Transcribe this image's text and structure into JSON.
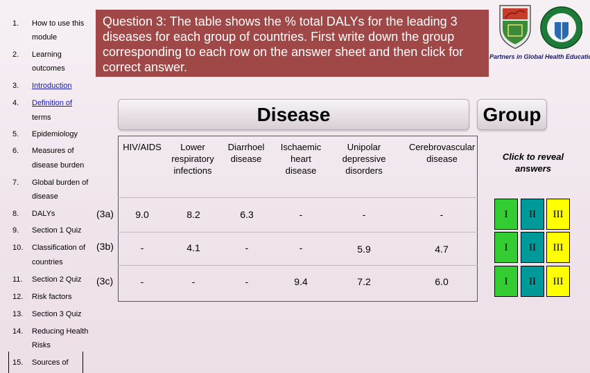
{
  "sidebar": {
    "items": [
      {
        "num": "1.",
        "line1": "How to use this",
        "line2": "module",
        "link": false
      },
      {
        "num": "2.",
        "line1": "Learning",
        "line2": "outcomes",
        "link": false
      },
      {
        "num": "3.",
        "line1": "Introduction",
        "line2": "",
        "link": true
      },
      {
        "num": "4.",
        "line1": "Definition of",
        "line2": "terms",
        "link": true
      },
      {
        "num": "5.",
        "line1": "Epidemiology",
        "line2": "",
        "link": false
      },
      {
        "num": "6.",
        "line1": "Measures of",
        "line2": "disease burden",
        "link": false
      },
      {
        "num": "7.",
        "line1": "Global burden of",
        "line2": "disease",
        "link": false
      },
      {
        "num": "8.",
        "line1": "DALYs",
        "line2": "",
        "link": false
      },
      {
        "num": "9.",
        "line1": "Section 1 Quiz",
        "line2": "",
        "link": false
      },
      {
        "num": "10.",
        "line1": "Classification of",
        "line2": "countries",
        "link": false
      },
      {
        "num": "11.",
        "line1": "Section 2 Quiz",
        "line2": "",
        "link": false
      },
      {
        "num": "12.",
        "line1": "Risk factors",
        "line2": "",
        "link": false
      },
      {
        "num": "13.",
        "line1": "Section 3 Quiz",
        "line2": "",
        "link": false
      },
      {
        "num": "14.",
        "line1": "Reducing Health",
        "line2": "Risks",
        "link": false
      },
      {
        "num": "15.",
        "line1": "Sources of",
        "line2": "",
        "link": false
      }
    ]
  },
  "question": "Question 3: The table shows the % total DALYs for the leading 3 diseases for each group of countries. First write down the group corresponding to each row on the answer sheet and then click for correct answer.",
  "partners_text": "Partners in Global Health Education",
  "headers": {
    "disease": "Disease",
    "group": "Group",
    "click_reveal": "Click to reveal answers"
  },
  "columns": [
    "HIV/AIDS",
    "Lower respiratory infections",
    "Diarrhoel disease",
    "Ischaemic heart disease",
    "Unipolar depressive disorders",
    "Cerebrovascular disease"
  ],
  "rows": [
    {
      "label": "(3a)",
      "values": [
        "9.0",
        "8.2",
        "6.3",
        "-",
        "-",
        "-"
      ]
    },
    {
      "label": "(3b)",
      "values": [
        "-",
        "4.1",
        "-",
        "-",
        "5.9",
        "4.7"
      ]
    },
    {
      "label": "(3c)",
      "values": [
        "-",
        "-",
        "-",
        "9.4",
        "7.2",
        "6.0"
      ]
    }
  ],
  "group_buttons": [
    "I",
    "II",
    "III"
  ],
  "colors": {
    "banner": "#a04747",
    "group_I": "#33cc33",
    "group_II": "#009999",
    "group_III": "#ffff00"
  }
}
